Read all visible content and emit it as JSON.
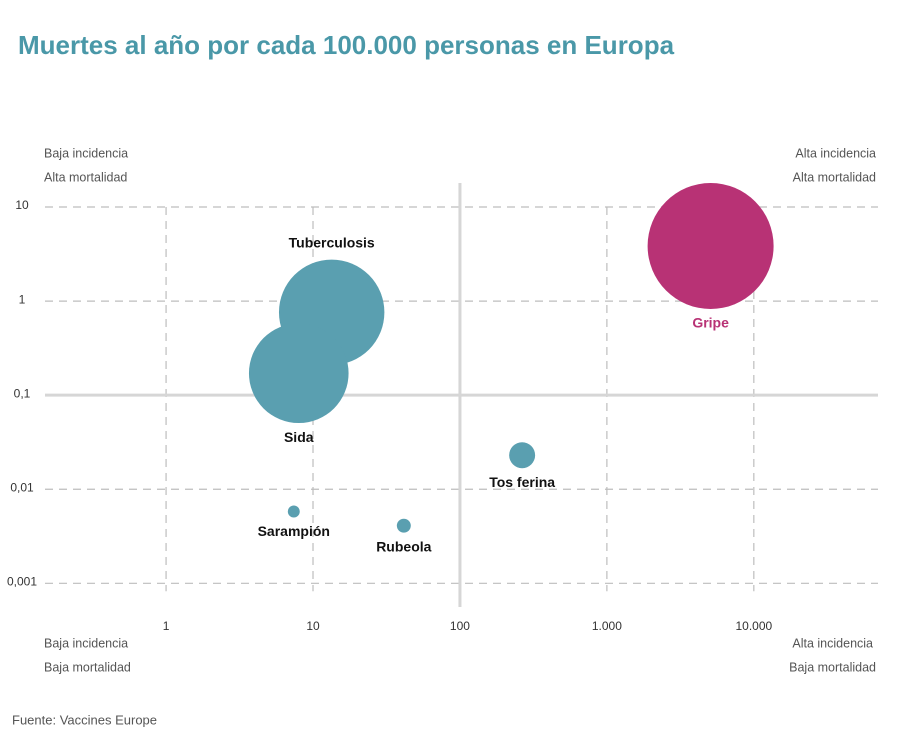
{
  "chart_data": {
    "type": "bubble",
    "title": "Muertes al año por cada 100.000 personas en Europa",
    "source": "Fuente: Vaccines Europe",
    "annotations": {
      "top_left": [
        "Baja incidencia",
        "Alta mortalidad"
      ],
      "top_right": [
        "Alta incidencia",
        "Alta mortalidad"
      ],
      "bottom_left": [
        "Baja incidencia",
        "Baja mortalidad"
      ],
      "bottom_right": [
        "Alta incidencia",
        "Baja mortalidad"
      ]
    },
    "x_scale": "log",
    "y_scale": "log",
    "xlim": [
      0.15,
      70000
    ],
    "ylim": [
      0.00056,
      18
    ],
    "xticks": [
      1,
      10,
      100,
      {
        "value": 1000,
        "label": "1.000"
      },
      {
        "value": 10000,
        "label": "10.000"
      }
    ],
    "yticks": [
      {
        "value": 0.001,
        "label": "0,001"
      },
      {
        "value": 0.01,
        "label": "0,01"
      },
      {
        "value": 0.1,
        "label": "0,1"
      },
      1,
      10
    ],
    "grid": true,
    "quadrant_lines": {
      "x": 100,
      "y": 0.1
    },
    "labels": [
      "Gripe",
      "Tuberculosis",
      "Sida",
      "Tos ferina",
      "Sarampión",
      "Rubeola"
    ],
    "x": [
      5080,
      13.4,
      8.0,
      265,
      7.4,
      41.5
    ],
    "values": [
      3.85,
      0.76,
      0.171,
      0.023,
      0.0058,
      0.0041
    ],
    "sizes": [
      4000,
      2800,
      2500,
      170,
      36,
      49
    ],
    "colors": [
      "#b83275",
      "#5a9fb0",
      "#5a9fb0",
      "#5a9fb0",
      "#5a9fb0",
      "#5a9fb0"
    ],
    "label_colors": [
      "#b83275",
      "#111111",
      "#111111",
      "#111111",
      "#111111",
      "#111111"
    ],
    "label_positions": [
      "below",
      "above",
      "below",
      "below",
      "below",
      "below"
    ]
  }
}
